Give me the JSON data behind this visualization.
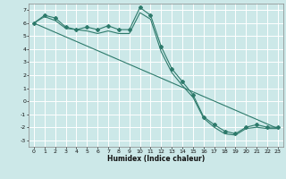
{
  "title": "",
  "xlabel": "Humidex (Indice chaleur)",
  "ylabel": "",
  "background_color": "#cce8e8",
  "grid_color": "#ffffff",
  "line_color": "#2d7a6b",
  "xlim": [
    -0.5,
    23.5
  ],
  "ylim": [
    -3.5,
    7.5
  ],
  "yticks": [
    -3,
    -2,
    -1,
    0,
    1,
    2,
    3,
    4,
    5,
    6,
    7
  ],
  "xticks": [
    0,
    1,
    2,
    3,
    4,
    5,
    6,
    7,
    8,
    9,
    10,
    11,
    12,
    13,
    14,
    15,
    16,
    17,
    18,
    19,
    20,
    21,
    22,
    23
  ],
  "series": [
    {
      "x": [
        0,
        1,
        2,
        3,
        4,
        5,
        6,
        7,
        8,
        9,
        10,
        11,
        12,
        13,
        14,
        15,
        16,
        17,
        18,
        19,
        20,
        21,
        22,
        23
      ],
      "y": [
        6.0,
        6.6,
        6.4,
        5.7,
        5.5,
        5.7,
        5.5,
        5.8,
        5.5,
        5.5,
        7.2,
        6.6,
        4.2,
        2.5,
        1.5,
        0.5,
        -1.2,
        -1.8,
        -2.3,
        -2.5,
        -2.0,
        -1.8,
        -2.0,
        -2.0
      ],
      "marker": true
    },
    {
      "x": [
        0,
        1,
        2,
        3,
        4,
        5,
        6,
        7,
        8,
        9,
        10,
        11,
        12,
        13,
        14,
        15,
        16,
        17,
        18,
        19,
        20,
        21,
        22,
        23
      ],
      "y": [
        6.0,
        6.5,
        6.2,
        5.6,
        5.5,
        5.4,
        5.2,
        5.4,
        5.2,
        5.2,
        6.8,
        6.3,
        3.8,
        2.2,
        1.2,
        0.3,
        -1.3,
        -2.0,
        -2.5,
        -2.6,
        -2.1,
        -2.0,
        -2.1,
        -2.1
      ],
      "marker": false
    },
    {
      "x": [
        0,
        23
      ],
      "y": [
        6.0,
        -2.1
      ],
      "marker": false
    }
  ]
}
